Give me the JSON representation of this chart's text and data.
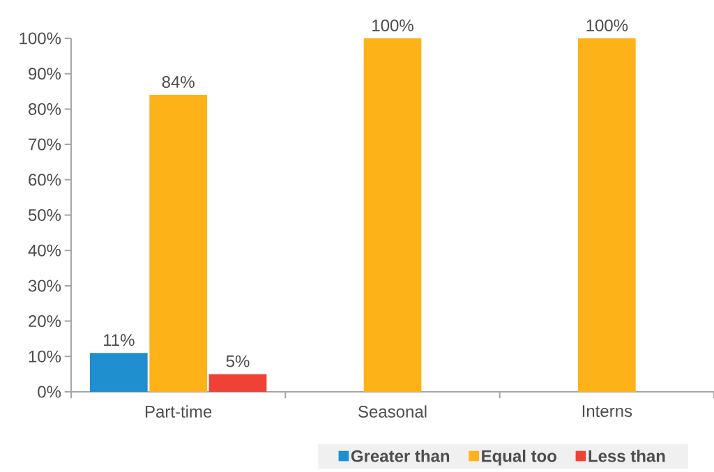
{
  "chart_data": {
    "type": "bar",
    "categories": [
      "Part-time",
      "Seasonal",
      "Interns"
    ],
    "series": [
      {
        "name": "Greater than",
        "color": "#1f8fcf",
        "values": [
          11,
          null,
          null
        ],
        "value_labels": [
          "11%",
          null,
          null
        ]
      },
      {
        "name": "Equal too",
        "color": "#fdb218",
        "values": [
          84,
          100,
          100
        ],
        "value_labels": [
          "84%",
          "100%",
          "100%"
        ]
      },
      {
        "name": "Less than",
        "color": "#ef4136",
        "values": [
          5,
          null,
          null
        ],
        "value_labels": [
          "5%",
          null,
          null
        ]
      }
    ],
    "ylim": [
      0,
      100
    ],
    "yticks": [
      {
        "value": 0,
        "label": "0%"
      },
      {
        "value": 10,
        "label": "10%"
      },
      {
        "value": 20,
        "label": "20%"
      },
      {
        "value": 30,
        "label": "30%"
      },
      {
        "value": 40,
        "label": "40%"
      },
      {
        "value": 50,
        "label": "50%"
      },
      {
        "value": 60,
        "label": "60%"
      },
      {
        "value": 70,
        "label": "70%"
      },
      {
        "value": 80,
        "label": "80%"
      },
      {
        "value": 90,
        "label": "90%"
      },
      {
        "value": 100,
        "label": "100%"
      }
    ],
    "legend": "bottom"
  }
}
